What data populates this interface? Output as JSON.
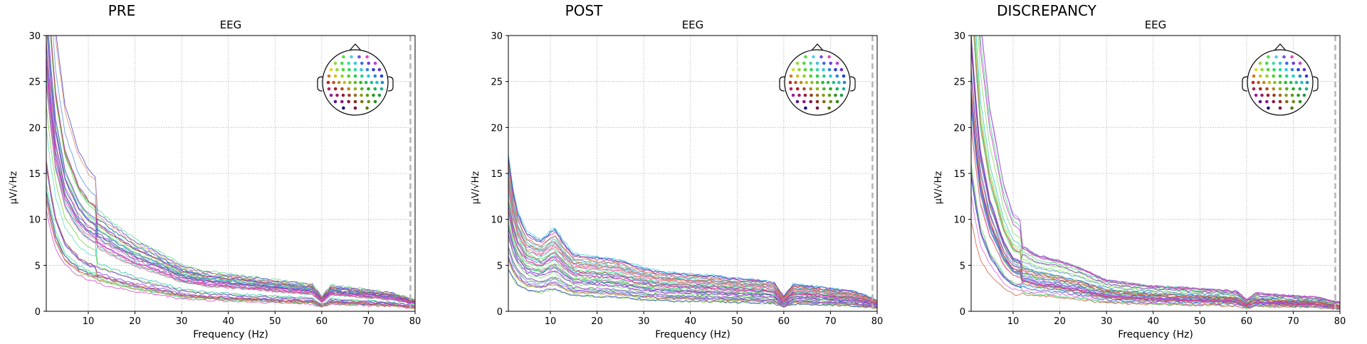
{
  "chart_data": [
    {
      "type": "line",
      "title": "PRE",
      "subtitle": "EEG",
      "xlabel": "Frequency (Hz)",
      "ylabel": "µV/√Hz",
      "xlim": [
        1,
        80
      ],
      "ylim": [
        0,
        30
      ],
      "xticks": [
        10,
        20,
        30,
        40,
        50,
        60,
        70,
        80
      ],
      "yticks": [
        0,
        5,
        10,
        15,
        20,
        25,
        30
      ],
      "grid": true,
      "vline_x": 79,
      "inset": "sensor-layout-head-map top-right",
      "series_count": 40,
      "reference_spectrum": {
        "x": [
          1,
          2,
          3,
          5,
          8,
          10,
          15,
          20,
          25,
          30,
          35,
          40,
          45,
          50,
          55,
          58,
          60,
          62,
          65,
          70,
          75,
          80
        ],
        "y": [
          24,
          19,
          15,
          11,
          8.5,
          7.6,
          6.2,
          5.0,
          4.2,
          3.2,
          2.8,
          2.6,
          2.4,
          2.2,
          2.0,
          1.9,
          1.0,
          1.8,
          1.7,
          1.5,
          1.3,
          0.8
        ]
      },
      "amplitude_range": [
        0.4,
        1.6
      ]
    },
    {
      "type": "line",
      "title": "POST",
      "subtitle": "EEG",
      "xlabel": "Frequency (Hz)",
      "ylabel": "µV/√Hz",
      "xlim": [
        1,
        80
      ],
      "ylim": [
        0,
        30
      ],
      "xticks": [
        10,
        20,
        30,
        40,
        50,
        60,
        70,
        80
      ],
      "yticks": [
        0,
        5,
        10,
        15,
        20,
        25,
        30
      ],
      "grid": true,
      "vline_x": 79,
      "inset": "sensor-layout-head-map top-right",
      "series_count": 40,
      "reference_spectrum": {
        "x": [
          1,
          2,
          3,
          5,
          8,
          10,
          11,
          13,
          15,
          20,
          25,
          30,
          35,
          40,
          45,
          50,
          55,
          58,
          60,
          62,
          65,
          70,
          75,
          80
        ],
        "y": [
          11,
          8.5,
          7,
          5.5,
          5.0,
          5.6,
          5.8,
          4.8,
          4.0,
          3.8,
          3.6,
          3.0,
          2.7,
          2.6,
          2.5,
          2.3,
          2.2,
          2.0,
          1.0,
          1.9,
          1.8,
          1.6,
          1.4,
          0.8
        ]
      },
      "amplitude_range": [
        0.4,
        1.6
      ]
    },
    {
      "type": "line",
      "title": "DISCREPANCY",
      "subtitle": "EEG",
      "xlabel": "Frequency (Hz)",
      "ylabel": "µV/√Hz",
      "xlim": [
        1,
        80
      ],
      "ylim": [
        0,
        30
      ],
      "xticks": [
        10,
        20,
        30,
        40,
        50,
        60,
        70,
        80
      ],
      "yticks": [
        0,
        5,
        10,
        15,
        20,
        25,
        30
      ],
      "grid": true,
      "vline_x": 79,
      "inset": "sensor-layout-head-map top-right",
      "series_count": 40,
      "reference_spectrum": {
        "x": [
          1,
          2,
          3,
          5,
          8,
          10,
          15,
          20,
          25,
          30,
          35,
          40,
          45,
          50,
          55,
          58,
          60,
          62,
          65,
          70,
          75,
          80
        ],
        "y": [
          26,
          20,
          15,
          10.5,
          6.5,
          5.0,
          4.0,
          3.6,
          3.0,
          2.2,
          2.0,
          1.8,
          1.7,
          1.6,
          1.5,
          1.4,
          0.8,
          1.3,
          1.2,
          1.1,
          1.0,
          0.6
        ]
      },
      "amplitude_range": [
        0.4,
        1.6
      ]
    }
  ]
}
